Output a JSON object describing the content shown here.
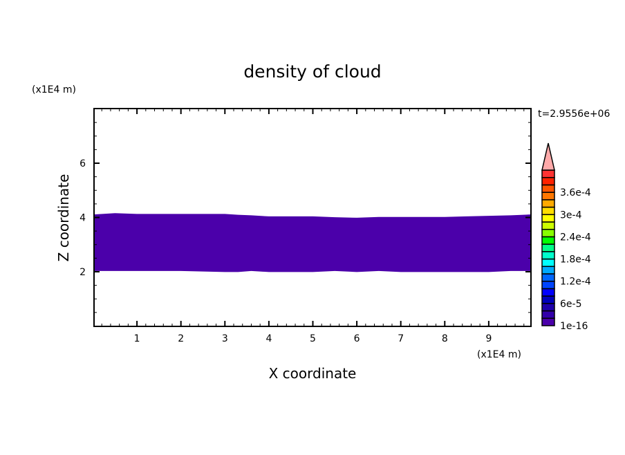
{
  "chart_data": {
    "type": "area",
    "title": "density of cloud",
    "xlabel": "X coordinate",
    "ylabel": "Z coordinate",
    "x_unit": "(x1E4 m)",
    "y_unit": "(x1E4 m)",
    "time_label": "t=2.9556e+06",
    "xlim": [
      0,
      10
    ],
    "ylim": [
      0,
      8
    ],
    "x_ticks": [
      1,
      2,
      3,
      4,
      5,
      6,
      7,
      8,
      9
    ],
    "y_ticks": [
      2,
      4,
      6
    ],
    "grid": false,
    "fill_color": "#4b00aa",
    "cloud_region": {
      "x": [
        0,
        0.5,
        1,
        2,
        3,
        3.3,
        3.6,
        4,
        5,
        5.5,
        6,
        6.5,
        7,
        8,
        8.5,
        9,
        9.5,
        9.95
      ],
      "top": [
        4.11,
        4.16,
        4.13,
        4.13,
        4.13,
        4.1,
        4.08,
        4.04,
        4.04,
        4.01,
        3.99,
        4.02,
        4.02,
        4.02,
        4.04,
        4.06,
        4.08,
        4.11
      ],
      "bottom": [
        2.03,
        2.03,
        2.03,
        2.03,
        1.99,
        1.99,
        2.03,
        1.99,
        1.99,
        2.03,
        1.99,
        2.03,
        1.99,
        1.99,
        1.99,
        1.99,
        2.03,
        2.03
      ]
    },
    "colorbar": {
      "labels": [
        "1e-16",
        "6e-5",
        "1.2e-4",
        "1.8e-4",
        "2.4e-4",
        "3e-4",
        "3.6e-4"
      ],
      "colors_bottom_to_top": [
        "#4b00aa",
        "#3300aa",
        "#1e00aa",
        "#0000bb",
        "#0000ff",
        "#0044ff",
        "#0066ff",
        "#00aaff",
        "#00ffff",
        "#00ffcc",
        "#00ff88",
        "#00ff00",
        "#88ff00",
        "#ccff00",
        "#ffff00",
        "#ffdd00",
        "#ffaa00",
        "#ff7700",
        "#ff5500",
        "#ff2200",
        "#ff3333"
      ],
      "over_color": "#ffaaaa"
    }
  }
}
